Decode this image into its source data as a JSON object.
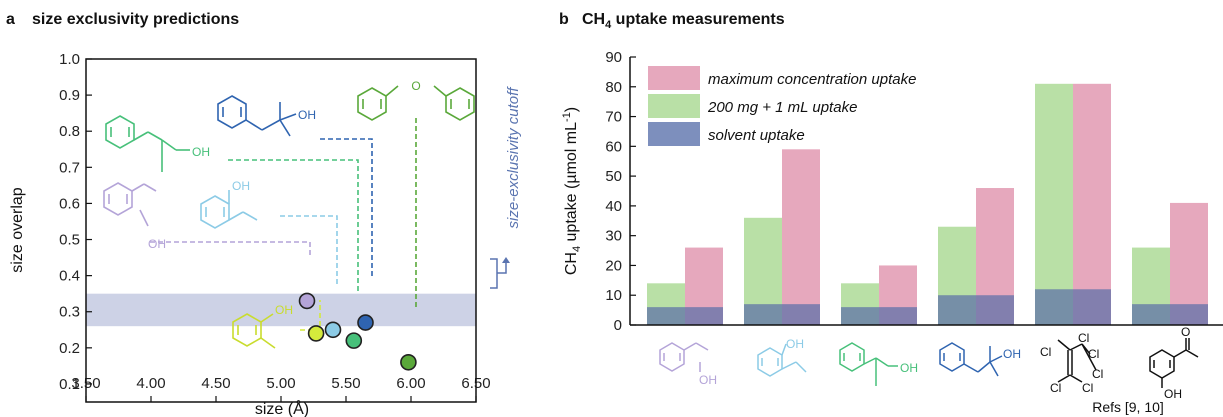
{
  "panel_a": {
    "letter": "a",
    "title": "size exclusivity predictions",
    "cutoff_label": "size-exclusivity cutoff",
    "substituent_oh": "OH"
  },
  "panel_b": {
    "letter": "b",
    "title_main": "CH",
    "title_sub": "4",
    "title_rest": " uptake measurements",
    "ylabel_main": "CH",
    "ylabel_sub": "4",
    "ylabel_rest": " uptake (µmol mL",
    "ylabel_sup": "-1",
    "ylabel_end": ")",
    "refs_label": "Refs [9, 10]",
    "chlorine_label": "Cl",
    "oh_label": "OH",
    "carbonyl_o_label": "O"
  },
  "colors": {
    "max_uptake": "#e6a8bd",
    "mg_uptake": "#b9e0a6",
    "solvent": "#5c6fa8",
    "band": "#cdd2e6",
    "purple": "#b4a4d8",
    "light_blue": "#8ccbe6",
    "yellow_green": "#d4ea3c",
    "green_mid": "#47c07a",
    "blue_dark": "#2f64b0",
    "green_dark": "#5aa83a"
  },
  "chart_data": [
    {
      "type": "scatter",
      "xlabel": "size (Å)",
      "ylabel": "size overlap",
      "xlim": [
        3.5,
        6.5
      ],
      "ylim": [
        0.05,
        1.0
      ],
      "xticks": [
        "3.50",
        "4.00",
        "4.50",
        "5.00",
        "5.50",
        "6.00",
        "6.50"
      ],
      "yticks": [
        "0.1",
        "0.2",
        "0.3",
        "0.4",
        "0.5",
        "0.6",
        "0.7",
        "0.8",
        "0.9",
        "1.0"
      ],
      "cutoff_band": [
        0.26,
        0.35
      ],
      "points": [
        {
          "name": "1-phenylethanol",
          "x": 5.2,
          "y": 0.33,
          "color": "#b4a4d8"
        },
        {
          "name": "2-ethylphenol",
          "x": 5.4,
          "y": 0.25,
          "color": "#8ccbe6"
        },
        {
          "name": "2-methylphenol",
          "x": 5.27,
          "y": 0.24,
          "color": "#d4ea3c"
        },
        {
          "name": "2-phenylpropanol",
          "x": 5.56,
          "y": 0.22,
          "color": "#47c07a"
        },
        {
          "name": "2-methyl-1-phenyl-2-propanol",
          "x": 5.65,
          "y": 0.27,
          "color": "#2f64b0"
        },
        {
          "name": "diphenyl ether",
          "x": 5.98,
          "y": 0.16,
          "color": "#5aa83a"
        }
      ]
    },
    {
      "type": "bar",
      "ylabel": "CH4 uptake (µmol mL-1)",
      "ylim": [
        0,
        90
      ],
      "yticks": [
        "0",
        "10",
        "20",
        "30",
        "40",
        "50",
        "60",
        "70",
        "80",
        "90"
      ],
      "legend": "top-left",
      "series": [
        {
          "name": "maximum concentration uptake",
          "values": [
            26,
            59,
            20,
            46,
            81,
            41
          ]
        },
        {
          "name": "200 mg + 1 mL uptake",
          "values": [
            14,
            36,
            14,
            33,
            81,
            26
          ]
        },
        {
          "name": "solvent uptake",
          "values": [
            6,
            7,
            6,
            10,
            12,
            7
          ]
        }
      ]
    }
  ]
}
